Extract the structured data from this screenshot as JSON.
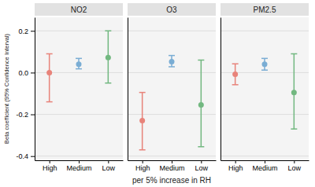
{
  "chart_data": [
    {
      "type": "errorbar",
      "title": "NO2",
      "categories": [
        "High",
        "Medium",
        "Low"
      ],
      "values": [
        0.0,
        0.04,
        0.072
      ],
      "low": [
        -0.14,
        0.018,
        -0.05
      ],
      "high": [
        0.09,
        0.068,
        0.2
      ],
      "colors": [
        "#E8837A",
        "#7AADD4",
        "#72B880"
      ],
      "ylabel": "Beta coefficient (95% Confidence Interval)",
      "ylim": [
        -0.42,
        0.265
      ],
      "yticks": [
        -0.4,
        -0.2,
        {
          "value": 0.0,
          "label": "0.0"
        },
        0.2
      ],
      "grid": true,
      "marker": "circle"
    },
    {
      "type": "errorbar",
      "title": "O3",
      "categories": [
        "High",
        "Medium",
        "Low"
      ],
      "values": [
        -0.23,
        0.052,
        -0.155
      ],
      "low": [
        -0.37,
        0.028,
        -0.355
      ],
      "high": [
        -0.095,
        0.082,
        0.06
      ],
      "colors": [
        "#E8837A",
        "#7AADD4",
        "#72B880"
      ],
      "xlabel": "per 5% increase in RH",
      "ylim": [
        -0.42,
        0.265
      ],
      "yticks": [
        -0.4,
        -0.2,
        {
          "value": 0.0,
          "label": "0.0"
        },
        0.2
      ],
      "grid": true,
      "marker": "circle",
      "tick_labels": "x"
    },
    {
      "type": "errorbar",
      "title": "PM2.5",
      "categories": [
        "High",
        "Medium",
        "Low"
      ],
      "values": [
        -0.008,
        0.04,
        -0.095
      ],
      "low": [
        -0.058,
        0.012,
        -0.27
      ],
      "high": [
        0.042,
        0.068,
        0.09
      ],
      "colors": [
        "#E8837A",
        "#7AADD4",
        "#72B880"
      ],
      "ylim": [
        -0.42,
        0.265
      ],
      "yticks": [
        -0.4,
        -0.2,
        {
          "value": 0.0,
          "label": "0.0"
        },
        0.2
      ],
      "grid": true,
      "marker": "circle",
      "tick_labels": "x"
    }
  ]
}
